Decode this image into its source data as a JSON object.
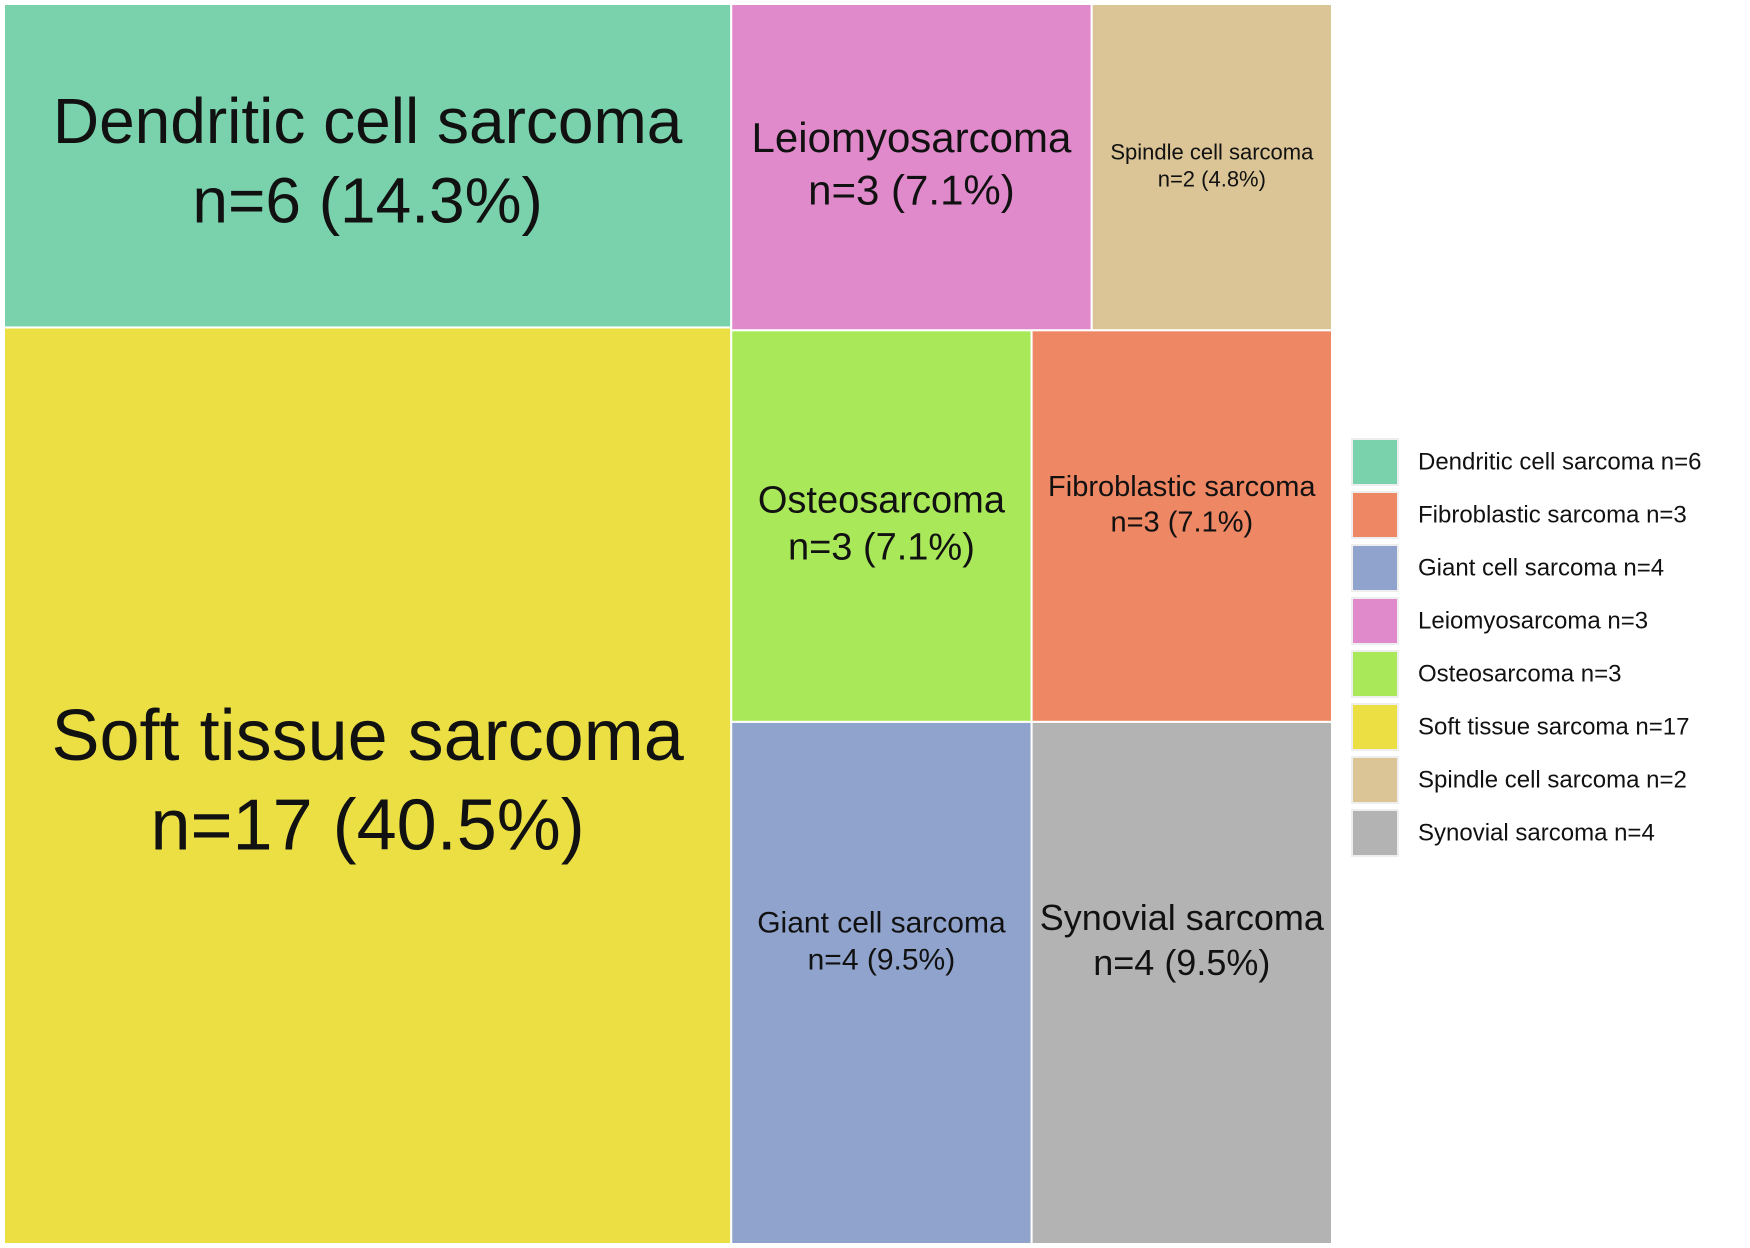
{
  "chart_data": {
    "type": "treemap",
    "categories": [
      "Dendritic cell sarcoma",
      "Fibroblastic sarcoma",
      "Giant cell sarcoma",
      "Leiomyosarcoma",
      "Osteosarcoma",
      "Soft tissue sarcoma",
      "Spindle cell sarcoma",
      "Synovial sarcoma"
    ],
    "values": [
      6,
      3,
      4,
      3,
      3,
      17,
      2,
      4
    ],
    "value_labels": [
      "n=6 (14.3%)",
      "n=3 (7.1%)",
      "n=4 (9.5%)",
      "n=3 (7.1%)",
      "n=3 (7.1%)",
      "n=17 (40.5%)",
      "n=2 (4.8%)",
      "n=4 (9.5%)"
    ],
    "legend_labels": [
      "Dendritic cell sarcoma n=6",
      "Fibroblastic sarcoma n=3",
      "Giant cell sarcoma n=4",
      "Leiomyosarcoma n=3",
      "Osteosarcoma n=3",
      "Soft tissue sarcoma n=17",
      "Spindle cell sarcoma n=2",
      "Synovial sarcoma n=4"
    ],
    "colors": [
      "#7ad2ad",
      "#ee8763",
      "#8fa3cc",
      "#e08acc",
      "#a9e859",
      "#ebdf44",
      "#dbc596",
      "#b3b3b3"
    ]
  }
}
